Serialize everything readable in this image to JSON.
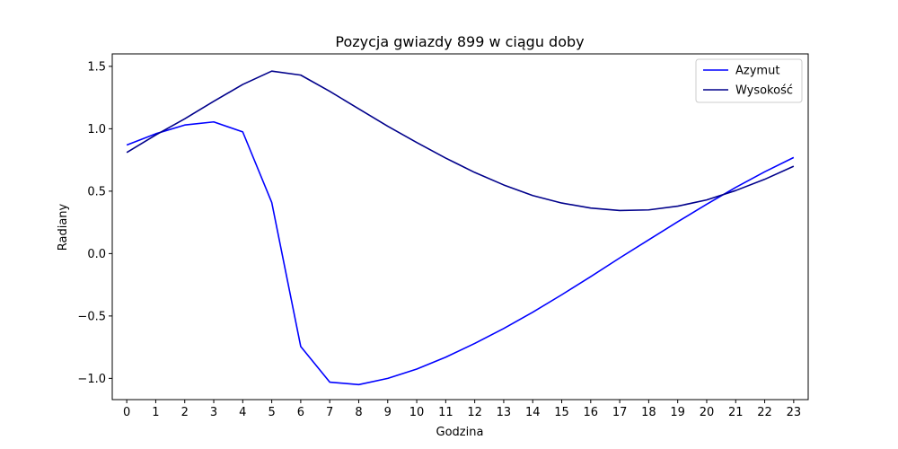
{
  "chart_data": {
    "type": "line",
    "title": "Pozycja gwiazdy 899 w ciągu doby",
    "xlabel": "Godzina",
    "ylabel": "Radiany",
    "x": [
      0,
      1,
      2,
      3,
      4,
      5,
      6,
      7,
      8,
      9,
      10,
      11,
      12,
      13,
      14,
      15,
      16,
      17,
      18,
      19,
      20,
      21,
      22,
      23
    ],
    "xlim": [
      -0.5,
      23.5
    ],
    "ylim": [
      -1.17,
      1.6
    ],
    "yticks": [
      -1.0,
      -0.5,
      0.0,
      0.5,
      1.0,
      1.5
    ],
    "ytick_labels": [
      "−1.0",
      "−0.5",
      "0.0",
      "0.5",
      "1.0",
      "1.5"
    ],
    "grid": false,
    "legend_position": "top-right",
    "series": [
      {
        "name": "Azymut",
        "color": "#0000ff",
        "values": [
          0.87,
          0.96,
          1.03,
          1.055,
          0.975,
          0.41,
          -0.745,
          -1.03,
          -1.05,
          -1.0,
          -0.925,
          -0.83,
          -0.72,
          -0.6,
          -0.47,
          -0.33,
          -0.185,
          -0.035,
          0.11,
          0.255,
          0.395,
          0.53,
          0.655,
          0.77
        ]
      },
      {
        "name": "Wysokość",
        "color": "#00008b",
        "values": [
          0.81,
          0.95,
          1.08,
          1.22,
          1.355,
          1.462,
          1.43,
          1.3,
          1.16,
          1.02,
          0.89,
          0.765,
          0.65,
          0.55,
          0.465,
          0.405,
          0.365,
          0.345,
          0.35,
          0.38,
          0.43,
          0.505,
          0.595,
          0.7
        ]
      }
    ]
  }
}
